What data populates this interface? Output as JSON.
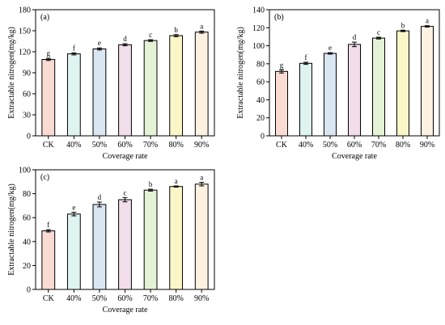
{
  "chart_data": [
    {
      "type": "bar",
      "panel_label": "(a)",
      "xlabel": "Coverage rate",
      "ylabel": "Extractable nitrogen(mg/kg)",
      "categories": [
        "CK",
        "40%",
        "50%",
        "60%",
        "70%",
        "80%",
        "90%"
      ],
      "values": [
        109,
        117,
        124,
        130,
        136,
        143,
        148
      ],
      "errors": [
        1.5,
        1.5,
        1.5,
        1.5,
        1.2,
        1.5,
        1.5
      ],
      "letters": [
        "g",
        "f",
        "e",
        "d",
        "c",
        "b",
        "a"
      ],
      "ylim": [
        0,
        180
      ],
      "yticks": [
        0,
        30,
        60,
        90,
        120,
        150,
        180
      ],
      "grid": false,
      "bar_colors": [
        "#fadbd4",
        "#dff3f1",
        "#dbe6f3",
        "#f2ddea",
        "#e4f2d6",
        "#faf6c8",
        "#fdf2e2"
      ]
    },
    {
      "type": "bar",
      "panel_label": "(b)",
      "xlabel": "Coverage rate",
      "ylabel": "Extractable nitrogen(mg/kg)",
      "categories": [
        "CK",
        "40%",
        "50%",
        "60%",
        "70%",
        "80%",
        "90%"
      ],
      "values": [
        71.5,
        80.5,
        91.5,
        101.5,
        108.5,
        116.5,
        121.5
      ],
      "errors": [
        1.8,
        1.2,
        0.8,
        2.5,
        1.0,
        0.8,
        0.8
      ],
      "letters": [
        "g",
        "f",
        "e",
        "d",
        "c",
        "b",
        "a"
      ],
      "ylim": [
        0,
        140
      ],
      "yticks": [
        0,
        20,
        40,
        60,
        80,
        100,
        120,
        140
      ],
      "grid": false,
      "bar_colors": [
        "#fadbd4",
        "#dff3f1",
        "#dbe6f3",
        "#f2ddea",
        "#e4f2d6",
        "#faf6c8",
        "#fdf2e2"
      ]
    },
    {
      "type": "bar",
      "panel_label": "(c)",
      "xlabel": "Coverage rate",
      "ylabel": "Extractable nitrogen(mg/kg)",
      "categories": [
        "CK",
        "40%",
        "50%",
        "60%",
        "70%",
        "80%",
        "90%"
      ],
      "values": [
        49,
        63,
        71,
        75,
        83,
        86,
        88
      ],
      "errors": [
        1.0,
        1.5,
        2.0,
        1.8,
        0.8,
        0.5,
        1.5
      ],
      "letters": [
        "f",
        "e",
        "d",
        "c",
        "b",
        "a",
        "a"
      ],
      "ylim": [
        0,
        100
      ],
      "yticks": [
        0,
        20,
        40,
        60,
        80,
        100
      ],
      "grid": false,
      "bar_colors": [
        "#fadbd4",
        "#dff3f1",
        "#dbe6f3",
        "#f2ddea",
        "#e4f2d6",
        "#faf6c8",
        "#fdf2e2"
      ]
    }
  ]
}
